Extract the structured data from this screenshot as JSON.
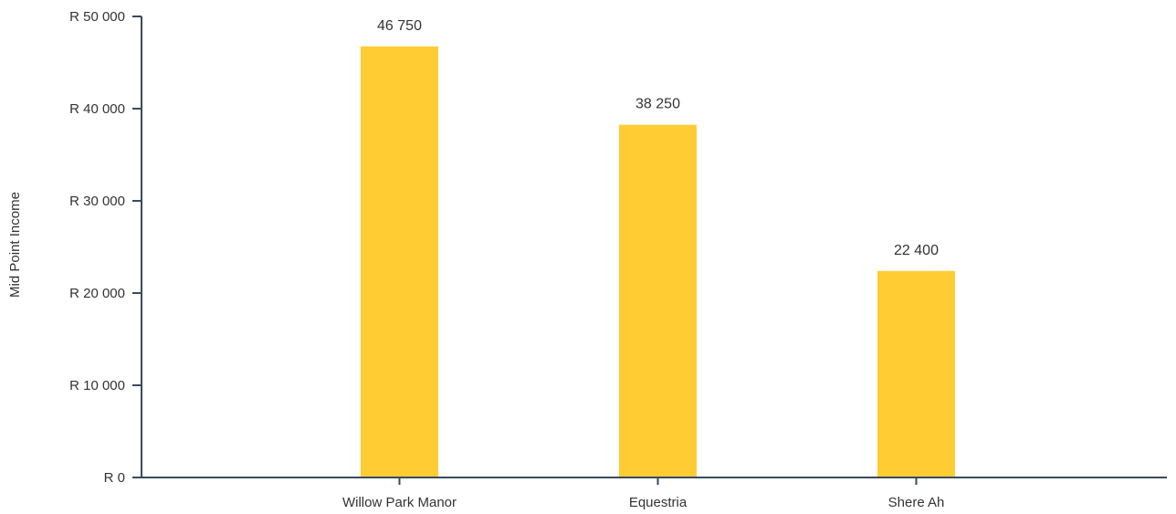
{
  "chart_data": {
    "type": "bar",
    "title": "",
    "xlabel": "",
    "ylabel": "Mid Point Income",
    "categories": [
      "Willow Park Manor",
      "Equestria",
      "Shere Ah"
    ],
    "series": [
      {
        "values": [
          46750,
          38250,
          22400
        ],
        "data_labels": [
          "46 750",
          "38 250",
          "22 400"
        ]
      }
    ],
    "ylim": [
      0,
      50000
    ],
    "yticks": [
      0,
      10000,
      20000,
      30000,
      40000,
      50000
    ],
    "ytick_labels": [
      "R  0",
      "R 10 000",
      "R 20 000",
      "R 30 000",
      "R 40 000",
      "R 50 000"
    ],
    "grid": false,
    "legend": "none",
    "colors": {
      "bar": "#FFCD33",
      "axis": "#3a4a5c",
      "text": "#333333"
    }
  }
}
